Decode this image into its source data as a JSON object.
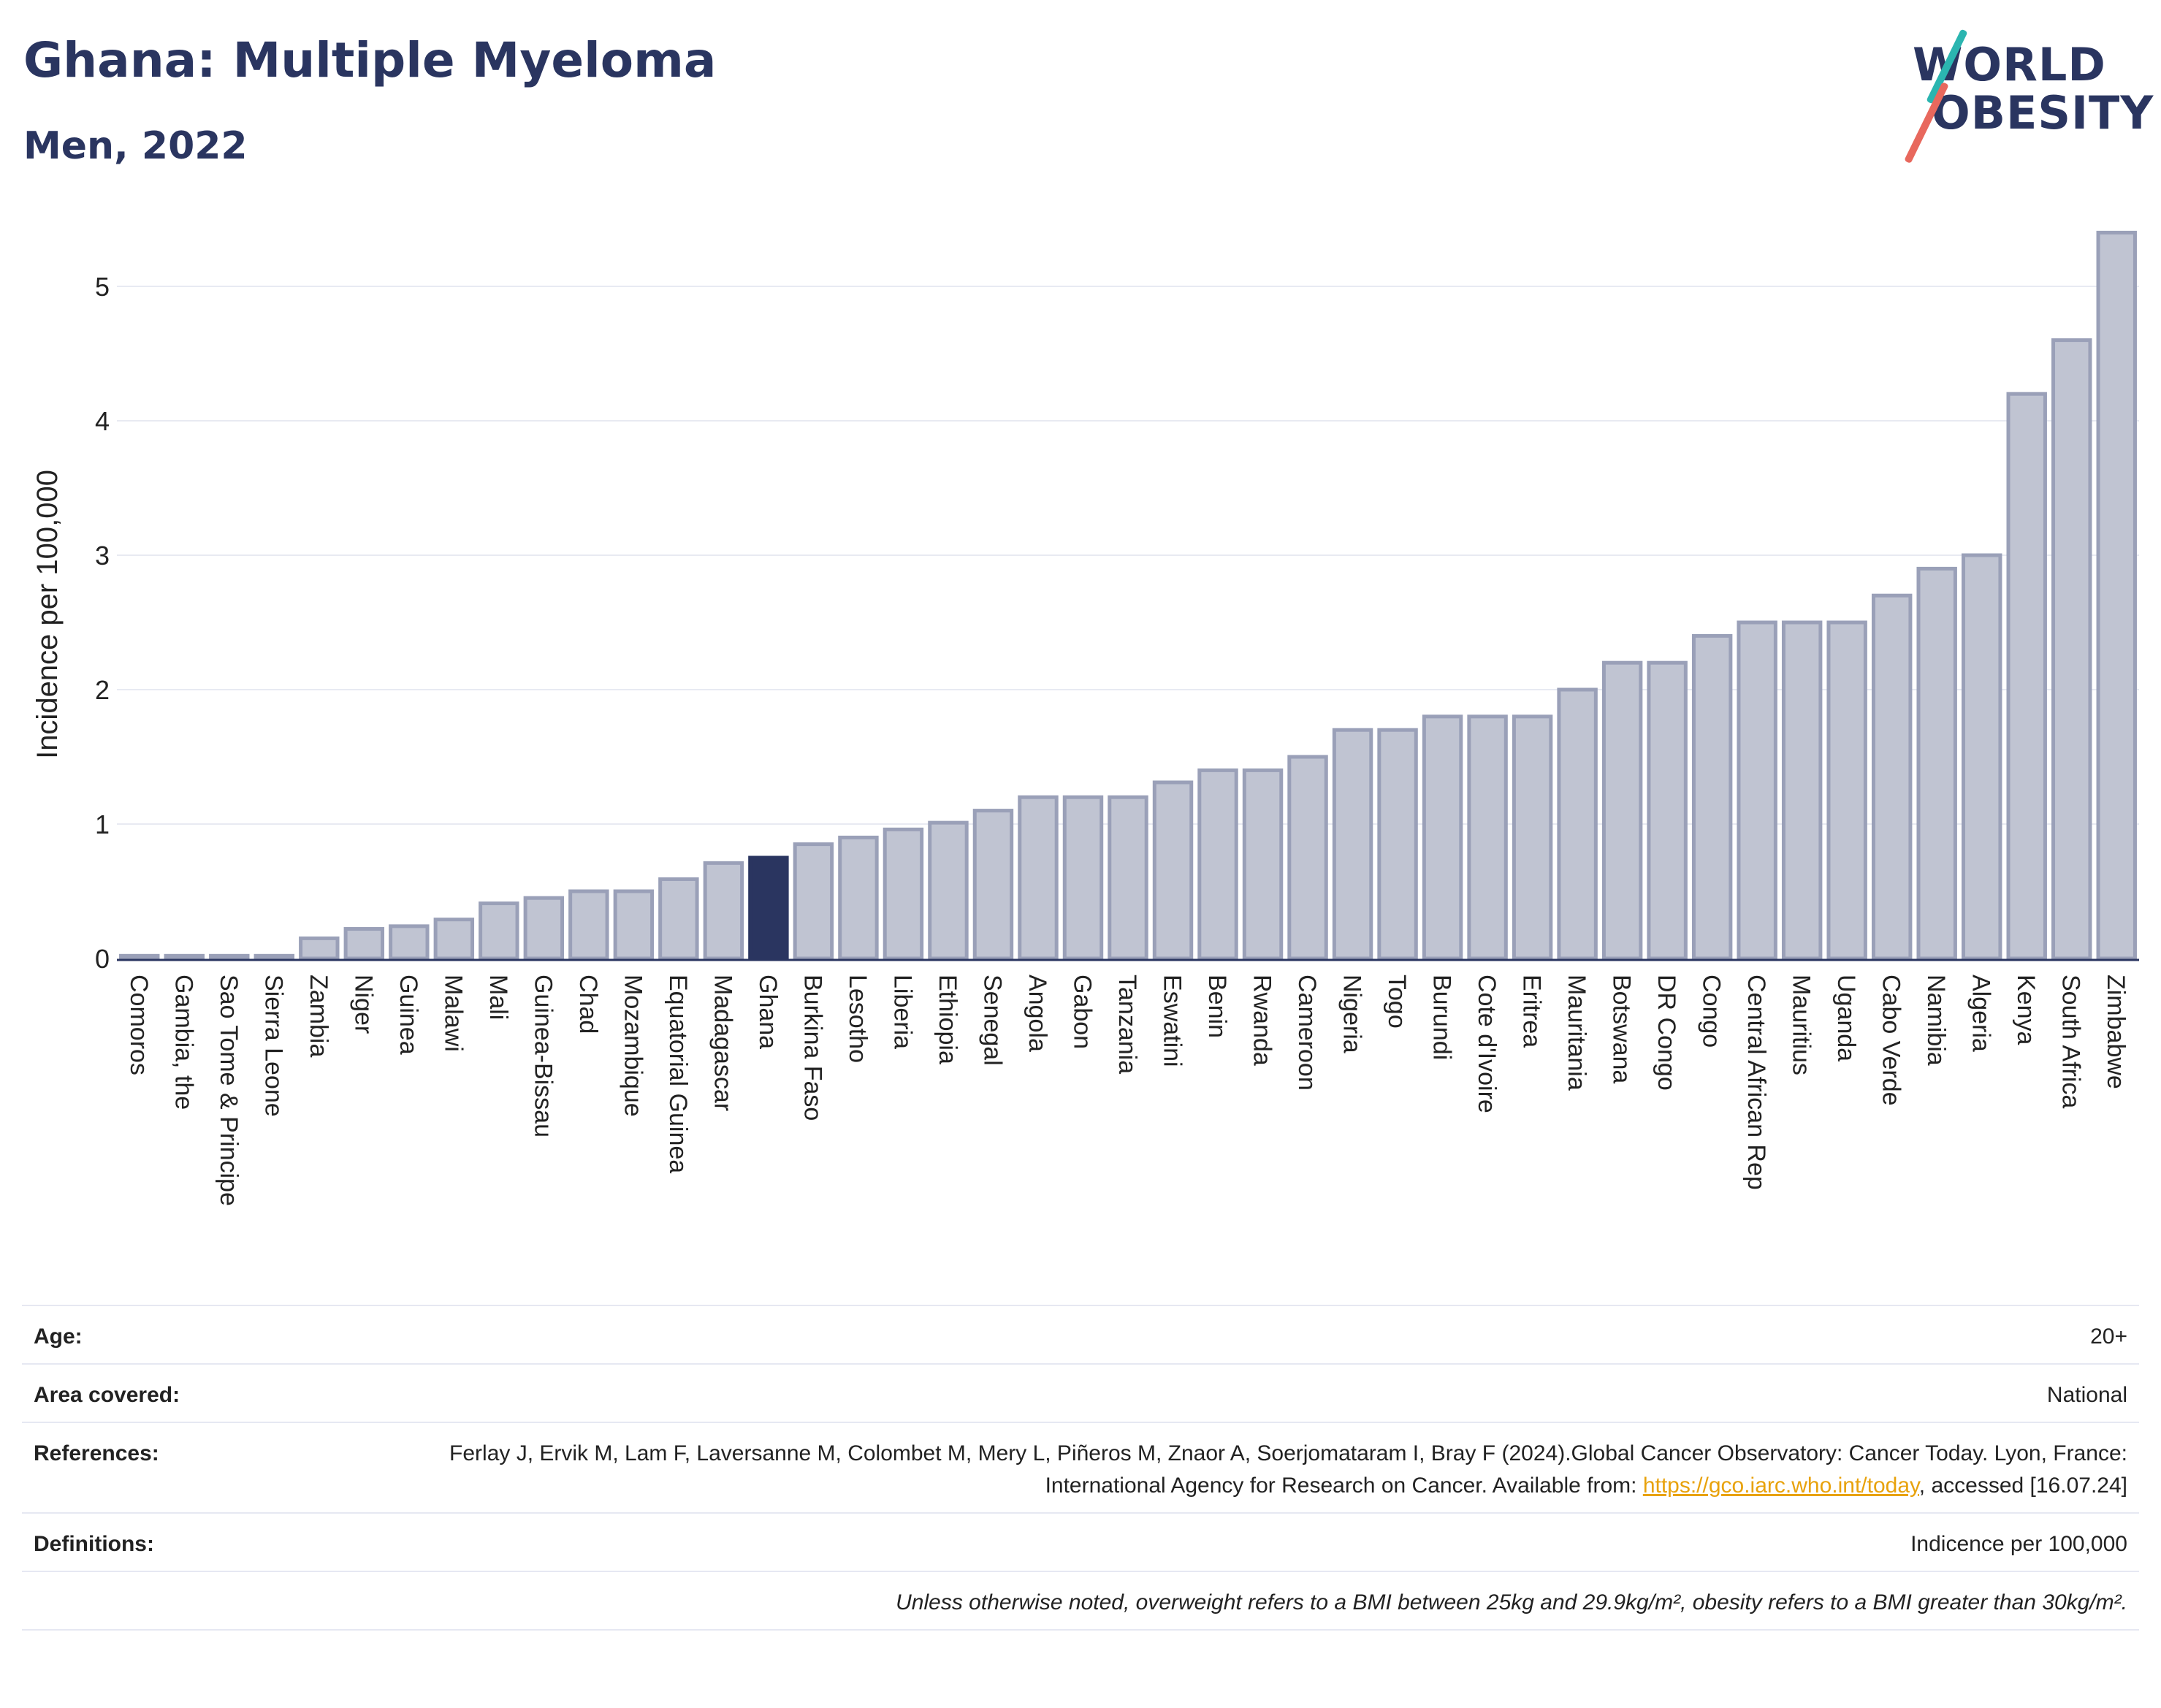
{
  "header": {
    "title": "Ghana: Multiple Myeloma",
    "subtitle": "Men, 2022"
  },
  "logo": {
    "line1": "WORLD",
    "line2": "OBESITY"
  },
  "chart_data": {
    "type": "bar",
    "ylabel": "Incidence per 100,000",
    "xlabel": "",
    "ylim": [
      0,
      5.5
    ],
    "yticks": [
      0,
      1,
      2,
      3,
      4,
      5
    ],
    "grid": true,
    "highlight": "Ghana",
    "colors": {
      "bar": "#c0c4d2",
      "bar_border": "#9aa0b8",
      "highlight": "#2a3560",
      "grid": "#e8eaf2"
    },
    "categories": [
      "Comoros",
      "Gambia, the",
      "Sao Tome & Principe",
      "Sierra Leone",
      "Zambia",
      "Niger",
      "Guinea",
      "Malawi",
      "Mali",
      "Guinea-Bissau",
      "Chad",
      "Mozambique",
      "Equatorial Guinea",
      "Madagascar",
      "Ghana",
      "Burkina Faso",
      "Lesotho",
      "Liberia",
      "Ethiopia",
      "Senegal",
      "Angola",
      "Gabon",
      "Tanzania",
      "Eswatini",
      "Benin",
      "Rwanda",
      "Cameroon",
      "Nigeria",
      "Togo",
      "Burundi",
      "Cote d'Ivoire",
      "Eritrea",
      "Mauritania",
      "Botswana",
      "DR Congo",
      "Congo",
      "Central African Rep",
      "Mauritius",
      "Uganda",
      "Cabo Verde",
      "Namibia",
      "Algeria",
      "Kenya",
      "South Africa",
      "Zimbabwe"
    ],
    "values": [
      0.02,
      0.02,
      0.02,
      0.02,
      0.15,
      0.22,
      0.24,
      0.29,
      0.41,
      0.45,
      0.5,
      0.5,
      0.59,
      0.71,
      0.75,
      0.85,
      0.9,
      0.96,
      1.01,
      1.1,
      1.2,
      1.2,
      1.2,
      1.31,
      1.4,
      1.4,
      1.5,
      1.7,
      1.7,
      1.8,
      1.8,
      1.8,
      2.0,
      2.2,
      2.2,
      2.4,
      2.5,
      2.5,
      2.5,
      2.7,
      2.9,
      3.0,
      4.2,
      4.6,
      5.4
    ]
  },
  "meta": {
    "age_label": "Age:",
    "age_value": "20+",
    "area_label": "Area covered:",
    "area_value": "National",
    "references_label": "References:",
    "references_text": "Ferlay J, Ervik M, Lam F, Laversanne M, Colombet M, Mery L, Piñeros M, Znaor A, Soerjomataram I, Bray F (2024).Global Cancer Observatory: Cancer Today. Lyon, France: International Agency for Research on Cancer. Available from: ",
    "references_link": "https://gco.iarc.who.int/today",
    "references_tail": ", accessed [16.07.24]",
    "definitions_label": "Definitions:",
    "definitions_value": "Indicence per 100,000",
    "note": "Unless otherwise noted, overweight refers to a BMI between 25kg and 29.9kg/m², obesity refers to a BMI greater than 30kg/m²."
  }
}
